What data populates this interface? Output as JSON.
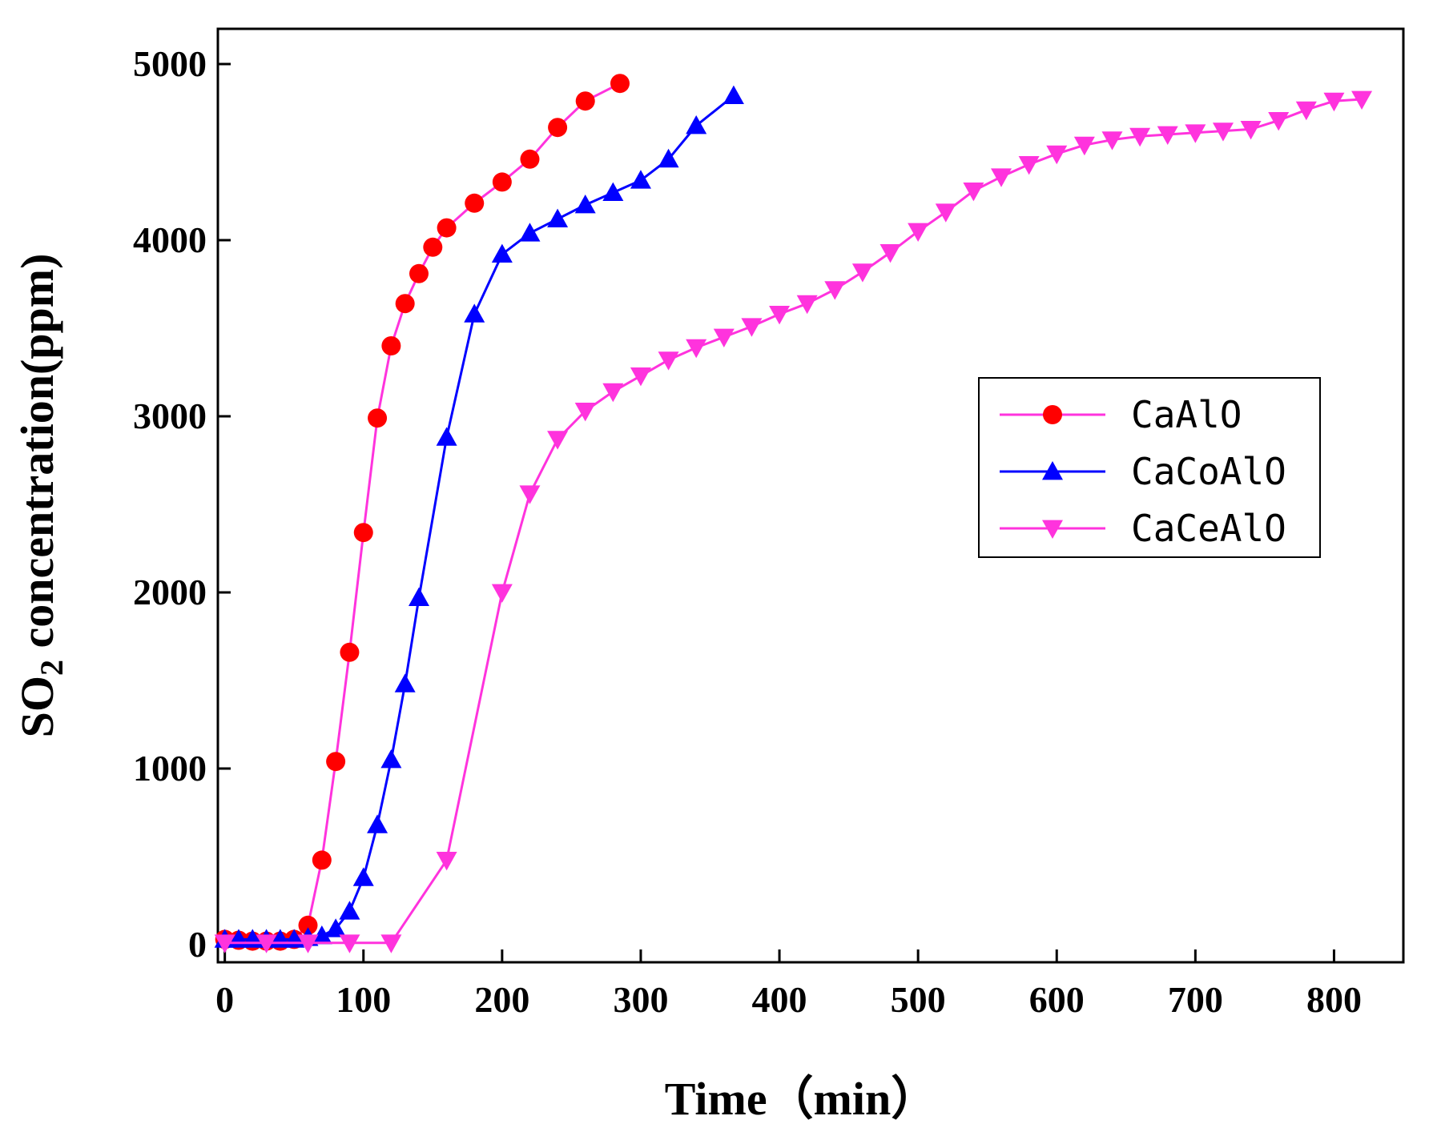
{
  "chart_data": {
    "type": "line",
    "xlabel": "Time（min）",
    "ylabel_prefix": "SO",
    "ylabel_subscript": "2",
    "ylabel_suffix": " concentration(ppm)",
    "xlim": [
      -5,
      850
    ],
    "ylim": [
      -100,
      5200
    ],
    "xticks": [
      0,
      100,
      200,
      300,
      400,
      500,
      600,
      700,
      800
    ],
    "yticks": [
      0,
      1000,
      2000,
      3000,
      4000,
      5000
    ],
    "grid": false,
    "legend_position": "center-right",
    "series": [
      {
        "name": "CaAlO",
        "line_color": "#ff33dd",
        "marker_color": "#ff0000",
        "marker": "circle",
        "x": [
          0,
          10,
          20,
          30,
          40,
          50,
          60,
          70,
          80,
          90,
          100,
          110,
          120,
          130,
          140,
          150,
          160,
          180,
          200,
          220,
          240,
          260,
          285
        ],
        "y": [
          30,
          25,
          20,
          20,
          20,
          30,
          110,
          480,
          1040,
          1660,
          2340,
          2990,
          3400,
          3640,
          3810,
          3960,
          4070,
          4210,
          4330,
          4460,
          4640,
          4790,
          4890
        ]
      },
      {
        "name": "CaCoAlO",
        "line_color": "#0000ff",
        "marker_color": "#0000ff",
        "marker": "triangle-up",
        "x": [
          0,
          10,
          20,
          30,
          40,
          50,
          60,
          70,
          80,
          90,
          100,
          110,
          120,
          130,
          140,
          160,
          180,
          200,
          220,
          240,
          260,
          280,
          300,
          320,
          340,
          367
        ],
        "y": [
          30,
          30,
          30,
          30,
          30,
          30,
          40,
          50,
          90,
          190,
          380,
          680,
          1050,
          1480,
          1970,
          2880,
          3580,
          3920,
          4040,
          4120,
          4200,
          4270,
          4340,
          4460,
          4650,
          4820
        ]
      },
      {
        "name": "CaCeAlO",
        "line_color": "#ff33dd",
        "marker_color": "#ff33dd",
        "marker": "triangle-down",
        "x": [
          0,
          30,
          60,
          90,
          120,
          160,
          200,
          220,
          240,
          260,
          280,
          300,
          320,
          340,
          360,
          380,
          400,
          420,
          440,
          460,
          480,
          500,
          520,
          540,
          560,
          580,
          600,
          620,
          640,
          660,
          680,
          700,
          720,
          740,
          760,
          780,
          800,
          820
        ],
        "y": [
          10,
          10,
          10,
          10,
          10,
          480,
          2000,
          2560,
          2870,
          3030,
          3140,
          3230,
          3320,
          3390,
          3450,
          3510,
          3580,
          3640,
          3720,
          3820,
          3930,
          4050,
          4160,
          4280,
          4360,
          4430,
          4490,
          4540,
          4570,
          4590,
          4600,
          4610,
          4620,
          4630,
          4680,
          4740,
          4790,
          4800
        ]
      }
    ]
  }
}
